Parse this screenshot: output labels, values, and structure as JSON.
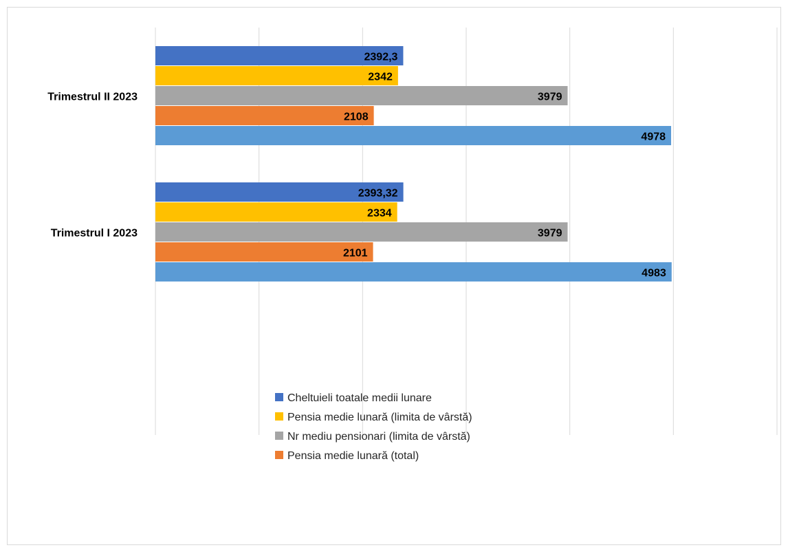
{
  "chart_data": {
    "type": "bar",
    "orientation": "horizontal",
    "categories": [
      "Trimestrul I 2023",
      "Trimestrul II 2023"
    ],
    "series": [
      {
        "name": "Cheltuieli toatale medii lunare",
        "color": "#4472C4",
        "values": [
          2393.32,
          2392.3
        ],
        "labels": [
          "2393,32",
          "2392,3"
        ]
      },
      {
        "name": "Pensia medie lunară (limita de vârstă)",
        "color": "#FFC000",
        "values": [
          2334,
          2342
        ],
        "labels": [
          "2334",
          "2342"
        ]
      },
      {
        "name": "Nr mediu pensionari (limita de vârstă)",
        "color": "#A5A5A5",
        "values": [
          3979,
          3979
        ],
        "labels": [
          "3979",
          "3979"
        ]
      },
      {
        "name": "Pensia medie lunară (total)",
        "color": "#ED7D31",
        "values": [
          2101,
          2108
        ],
        "labels": [
          "2101",
          "2108"
        ]
      },
      {
        "name": "",
        "color": "#5B9BD5",
        "values": [
          4983,
          4978
        ],
        "labels": [
          "4983",
          "4978"
        ]
      }
    ],
    "xlim": [
      0,
      6000
    ],
    "gridlines": "vertical",
    "legend": "bottom"
  }
}
